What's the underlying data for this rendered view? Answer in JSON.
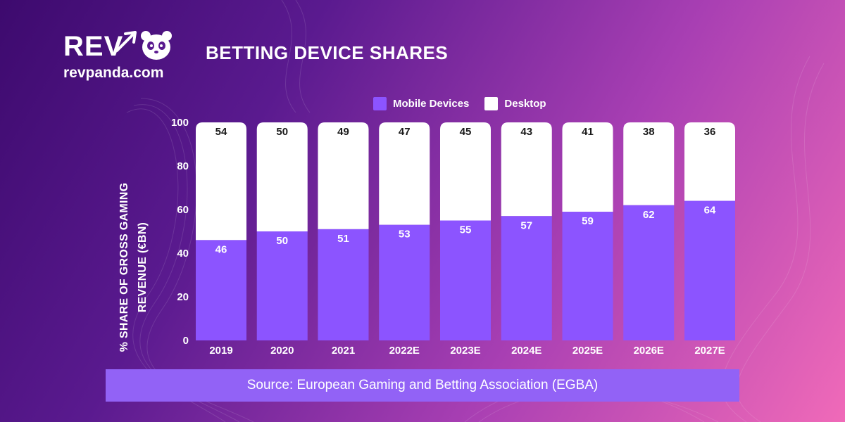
{
  "brand": {
    "logo_text": "REV",
    "url": "revpanda.com"
  },
  "title": "BETTING DEVICE SHARES",
  "source": "Source: European Gaming and Betting Association (EGBA)",
  "colors": {
    "mobile": "#8c54ff",
    "desktop": "#ffffff",
    "source_bar": "#9262f6"
  },
  "chart_data": {
    "type": "bar",
    "stacked": true,
    "categories": [
      "2019",
      "2020",
      "2021",
      "2022E",
      "2023E",
      "2024E",
      "2025E",
      "2026E",
      "2027E"
    ],
    "series": [
      {
        "name": "Mobile Devices",
        "color": "#8c54ff",
        "values": [
          46,
          50,
          51,
          53,
          55,
          57,
          59,
          62,
          64
        ]
      },
      {
        "name": "Desktop",
        "color": "#ffffff",
        "values": [
          54,
          50,
          49,
          47,
          45,
          43,
          41,
          38,
          36
        ]
      }
    ],
    "ylabel_lines": [
      "% SHARE OF GROSS GAMING",
      "REVENUE (€BN)"
    ],
    "ylim": [
      0,
      100
    ],
    "yticks": [
      0,
      20,
      40,
      60,
      80,
      100
    ],
    "legend_position": "top",
    "grid": false
  }
}
